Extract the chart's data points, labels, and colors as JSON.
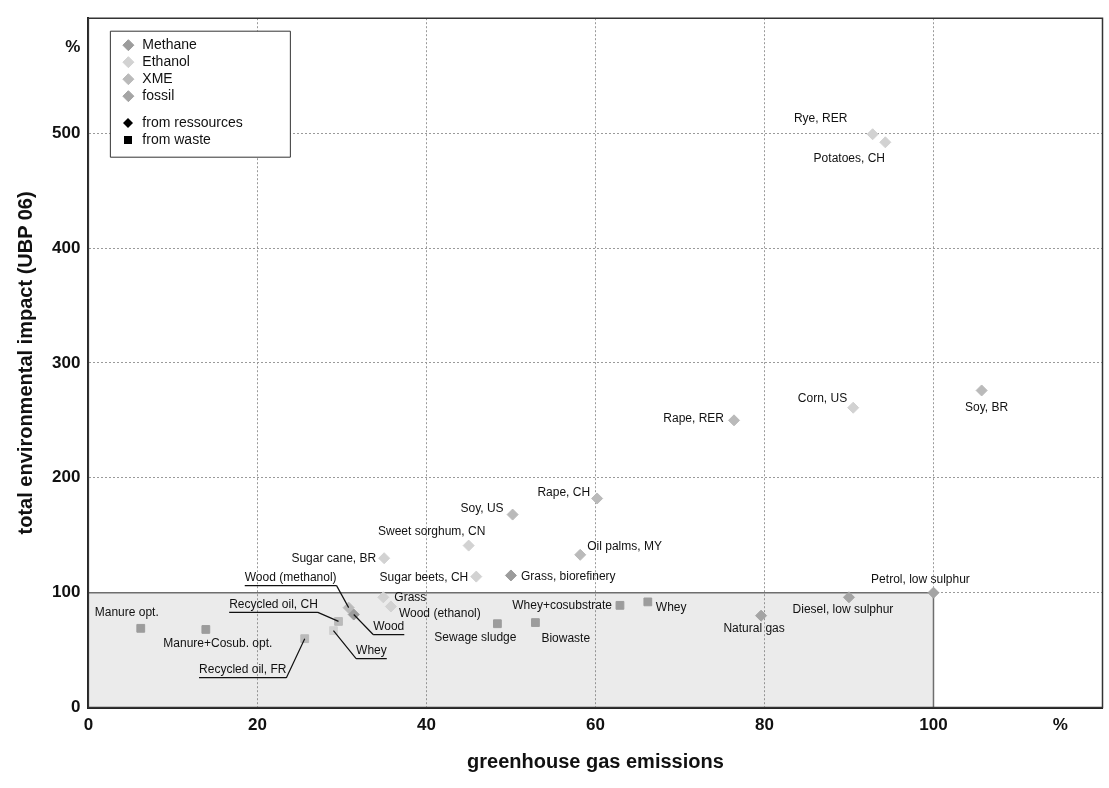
{
  "chart_data": {
    "type": "scatter",
    "xlabel": "greenhouse gas emissions",
    "ylabel": "total environmental impact (UBP 06)",
    "xlim": [
      0,
      120
    ],
    "xticks": [
      0,
      20,
      40,
      60,
      80,
      100,
      {
        "value": 115,
        "label": "%"
      }
    ],
    "ylim": [
      0,
      600
    ],
    "yticks": [
      0,
      100,
      200,
      300,
      400,
      500,
      {
        "value": 575,
        "label": "%"
      }
    ],
    "grid": true,
    "legend": "top left",
    "series": [
      {
        "name": "Methane",
        "color": "#9c9c9c",
        "marker": "diamond",
        "x": [
          50.0,
          31.4
        ],
        "values": [
          115,
          81
        ]
      },
      {
        "name": "Ethanol",
        "color": "#d2d2d2",
        "marker": "diamond",
        "x": [
          35.0,
          45.9,
          45.0,
          34.9,
          35.8,
          92.8,
          94.3,
          90.5
        ],
        "values": [
          130,
          114,
          141,
          96,
          88,
          499,
          492,
          261
        ]
      },
      {
        "name": "XME",
        "color": "#bababa",
        "marker": "diamond",
        "x": [
          76.4,
          60.2,
          50.2,
          105.7,
          58.2,
          30.8
        ],
        "values": [
          250,
          182,
          168,
          276,
          133,
          87
        ]
      },
      {
        "name": "fossil",
        "color": "#a4a4a4",
        "marker": "diamond",
        "x": [
          100,
          90,
          79.6
        ],
        "values": [
          100,
          96,
          80
        ]
      },
      {
        "color": "#9c9c9c",
        "marker": "square",
        "x": [
          6.2,
          13.9,
          48.4,
          52.9,
          62.9,
          66.2
        ],
        "values": [
          69,
          68,
          73,
          74,
          89,
          92
        ]
      },
      {
        "color": "#d2d2d2",
        "marker": "square",
        "x": [
          29.0
        ],
        "values": [
          67
        ]
      },
      {
        "color": "#bababa",
        "marker": "square",
        "x": [
          25.6,
          29.6
        ],
        "values": [
          60,
          75
        ]
      },
      {
        "type": "area",
        "color": "#6e6e6e",
        "x": [
          0,
          100,
          100
        ],
        "values": [
          100,
          100,
          0
        ]
      }
    ],
    "annotations": [
      "from ressources",
      "from waste",
      {
        "text": "Manure opt.",
        "x": 6.2,
        "y": 69
      },
      {
        "text": "Manure+Cosub. opt.",
        "x": 13.9,
        "y": 68
      },
      {
        "text": "Recycled oil, FR",
        "x": 25.6,
        "y": 60
      },
      {
        "text": "Recycled oil, CH",
        "x": 29.6,
        "y": 75
      },
      {
        "text": "Whey",
        "x": 29.0,
        "y": 67
      },
      {
        "text": "Wood (methanol)",
        "x": 30.8,
        "y": 87
      },
      {
        "text": "Wood",
        "x": 31.4,
        "y": 81
      },
      {
        "text": "Grass",
        "x": 34.9,
        "y": 96
      },
      {
        "text": "Wood (ethanol)",
        "x": 35.8,
        "y": 88
      },
      {
        "text": "Sugar cane, BR",
        "x": 35.0,
        "y": 130
      },
      {
        "text": "Sugar beets, CH",
        "x": 45.9,
        "y": 114
      },
      {
        "text": "Sweet sorghum, CN",
        "x": 45.0,
        "y": 141
      },
      {
        "text": "Soy, US",
        "x": 50.2,
        "y": 168
      },
      {
        "text": "Grass, biorefinery",
        "x": 50.0,
        "y": 115
      },
      {
        "text": "Sewage sludge",
        "x": 48.4,
        "y": 73
      },
      {
        "text": "Biowaste",
        "x": 52.9,
        "y": 74
      },
      {
        "text": "Whey+cosubstrate",
        "x": 62.9,
        "y": 89
      },
      {
        "text": "Whey",
        "x": 66.2,
        "y": 92
      },
      {
        "text": "Rape, CH",
        "x": 60.2,
        "y": 182
      },
      {
        "text": "Oil palms, MY",
        "x": 58.2,
        "y": 133
      },
      {
        "text": "Rape, RER",
        "x": 76.4,
        "y": 250
      },
      {
        "text": "Corn, US",
        "x": 90.5,
        "y": 261
      },
      {
        "text": "Petrol, low sulphur",
        "x": 100,
        "y": 100
      },
      {
        "text": "Diesel, low sulphur",
        "x": 90,
        "y": 96
      },
      {
        "text": "Natural gas",
        "x": 79.6,
        "y": 80
      },
      {
        "text": "Rye, RER",
        "x": 92.8,
        "y": 499
      },
      {
        "text": "Potatoes, CH",
        "x": 94.3,
        "y": 492
      },
      {
        "text": "Soy, BR",
        "x": 105.7,
        "y": 276
      }
    ]
  }
}
